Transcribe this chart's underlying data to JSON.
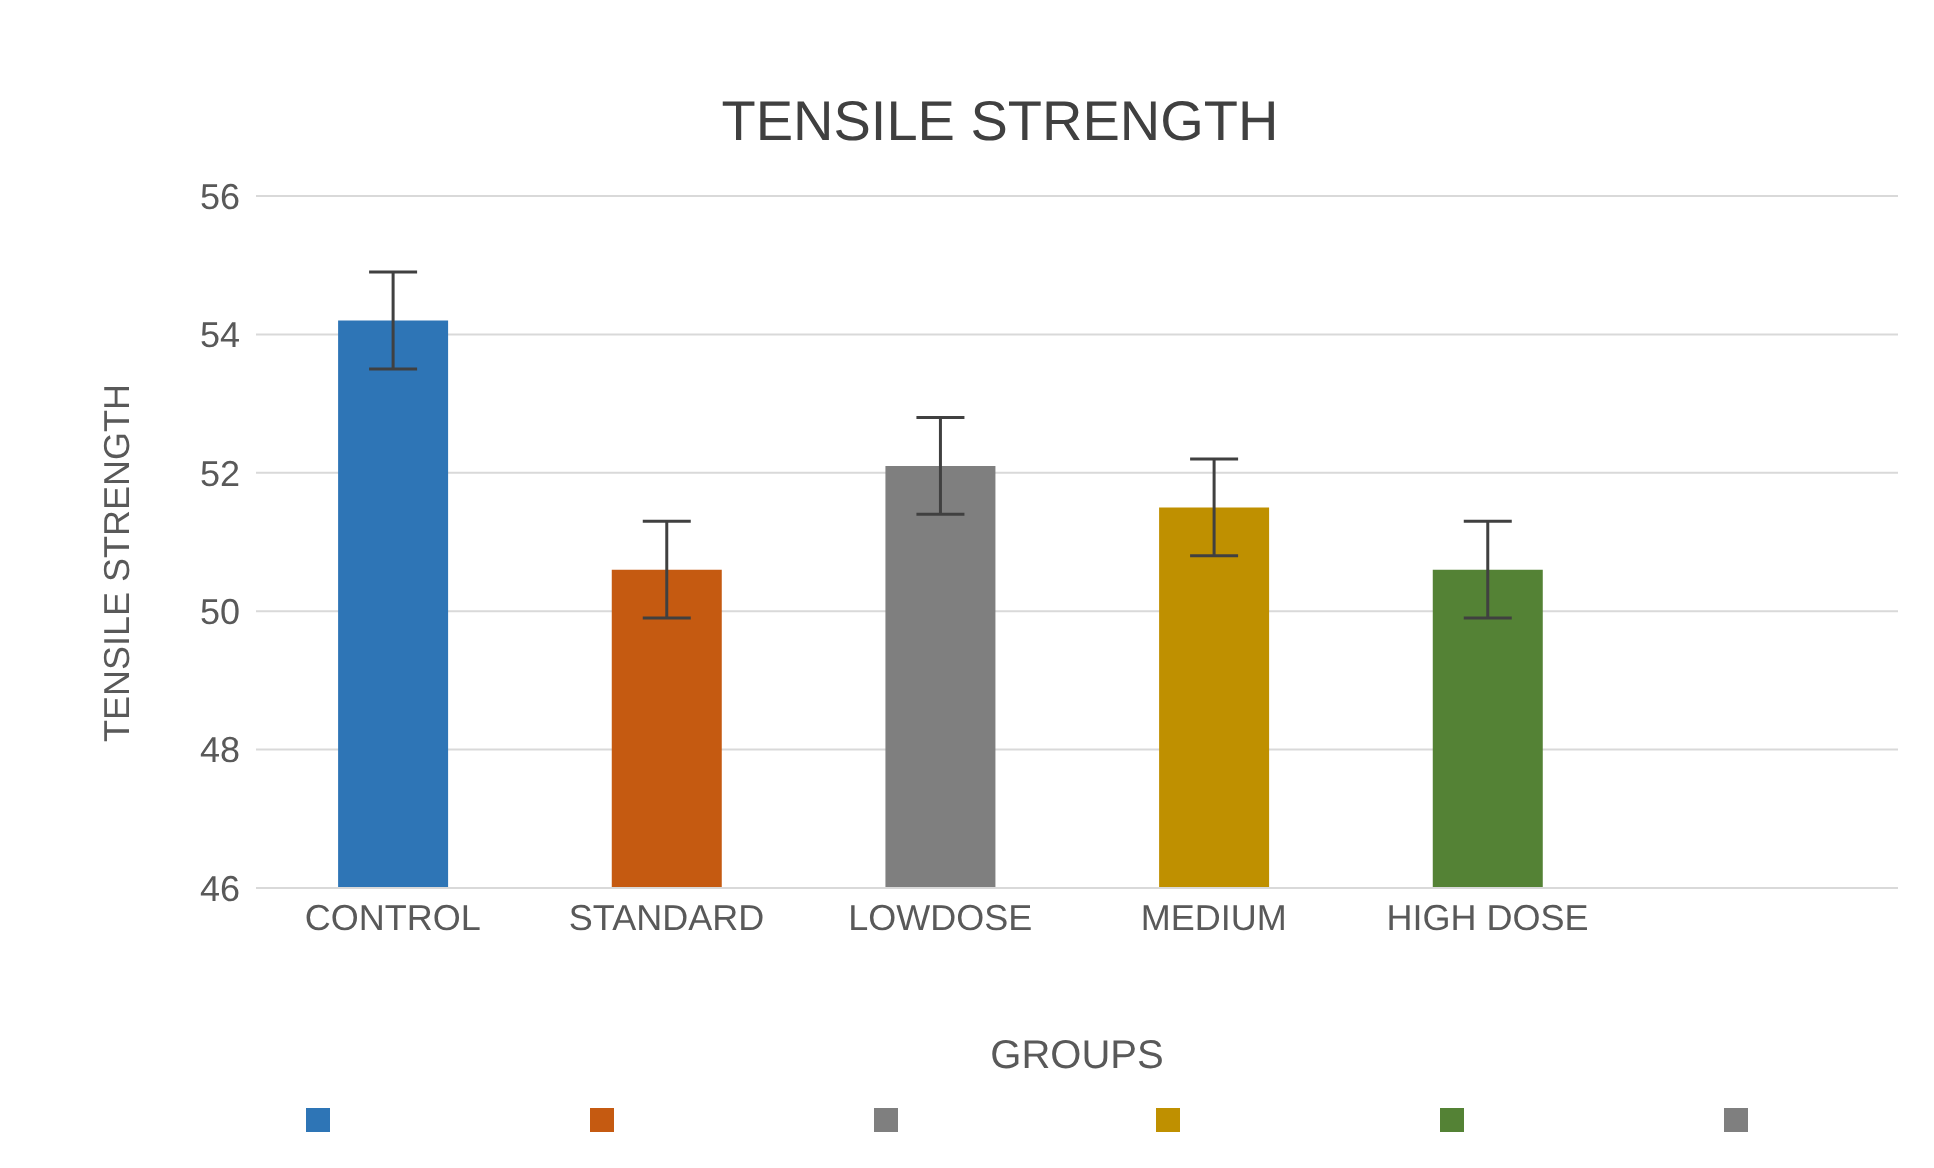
{
  "chart_data": {
    "type": "bar",
    "title": "TENSILE STRENGTH",
    "xlabel": "GROUPS",
    "ylabel": "TENSILE STRENGTH",
    "categories": [
      "CONTROL",
      "STANDARD",
      "LOWDOSE",
      "MEDIUM",
      "HIGH DOSE",
      null
    ],
    "values": [
      54.2,
      50.6,
      52.1,
      51.5,
      50.6,
      null
    ],
    "errors": [
      0.7,
      0.7,
      0.7,
      0.7,
      0.7,
      null
    ],
    "colors": [
      "#2e75b6",
      "#c55a11",
      "#7f7f7f",
      "#bf9000",
      "#548235",
      "#7f7f7f"
    ],
    "ylim": [
      46,
      56
    ],
    "yticks": [
      46,
      48,
      50,
      52,
      54,
      56
    ],
    "grid": "y"
  }
}
